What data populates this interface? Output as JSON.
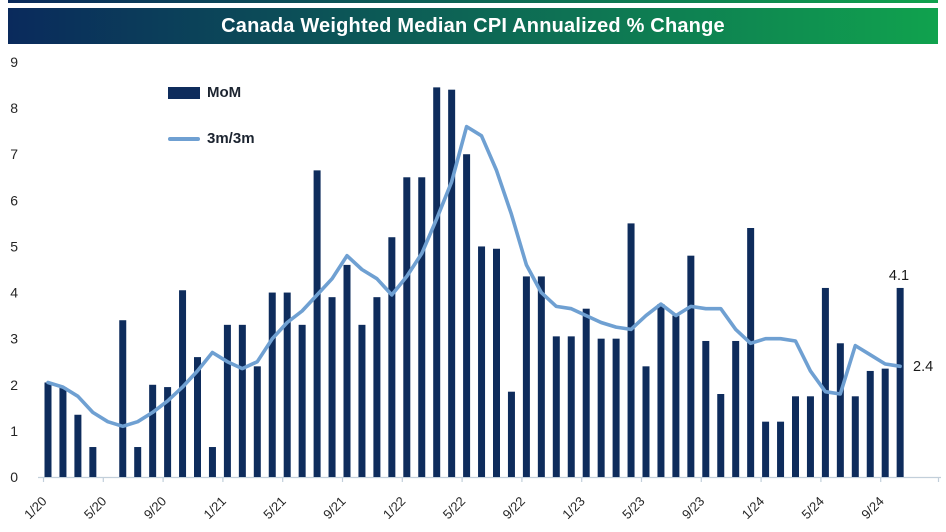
{
  "title": "Canada Weighted Median CPI Annualized % Change",
  "legend": {
    "bar_label": "MoM",
    "line_label": "3m/3m"
  },
  "annotations": {
    "last_bar_label": "4.1",
    "line_end_label": "2.4"
  },
  "colors": {
    "bar": "#0e2c5c",
    "line": "#6fa0d2",
    "title_gradient_start": "#0a2a5c",
    "title_gradient_end": "#10a24e",
    "axis": "#c2cfda",
    "axis_text": "#262626",
    "annotation_text": "#1a1a1a"
  },
  "y_axis": {
    "min": 0,
    "max": 9,
    "ticks": [
      "0",
      "1",
      "2",
      "3",
      "4",
      "5",
      "6",
      "7",
      "8",
      "9"
    ]
  },
  "x_axis": {
    "tick_labels": [
      "1/20",
      "5/20",
      "9/20",
      "1/21",
      "5/21",
      "9/21",
      "1/22",
      "5/22",
      "9/22",
      "1/23",
      "5/23",
      "9/23",
      "1/24",
      "5/24",
      "9/24"
    ]
  },
  "chart_data": {
    "type": "bar+line",
    "title": "Canada Weighted Median CPI Annualized % Change",
    "xlabel": "",
    "ylabel": "",
    "ylim": [
      0,
      9
    ],
    "grid": false,
    "legend_position": "inside-top-left",
    "categories": [
      "1/20",
      "2/20",
      "3/20",
      "4/20",
      "5/20",
      "6/20",
      "7/20",
      "8/20",
      "9/20",
      "10/20",
      "11/20",
      "12/20",
      "1/21",
      "2/21",
      "3/21",
      "4/21",
      "5/21",
      "6/21",
      "7/21",
      "8/21",
      "9/21",
      "10/21",
      "11/21",
      "12/21",
      "1/22",
      "2/22",
      "3/22",
      "4/22",
      "5/22",
      "6/22",
      "7/22",
      "8/22",
      "9/22",
      "10/22",
      "11/22",
      "12/22",
      "1/23",
      "2/23",
      "3/23",
      "4/23",
      "5/23",
      "6/23",
      "7/23",
      "8/23",
      "9/23",
      "10/23",
      "11/23",
      "12/23",
      "1/24",
      "2/24",
      "3/24",
      "4/24",
      "5/24",
      "6/24",
      "7/24",
      "8/24",
      "9/24",
      "10/24"
    ],
    "series": [
      {
        "name": "MoM",
        "type": "bar",
        "values": [
          2.05,
          1.95,
          1.35,
          0.65,
          0,
          3.4,
          0.65,
          2.0,
          1.95,
          4.05,
          2.6,
          0.65,
          3.3,
          3.3,
          2.4,
          4.0,
          4.0,
          3.3,
          6.65,
          3.9,
          4.6,
          3.3,
          3.9,
          5.2,
          6.5,
          6.5,
          8.45,
          8.4,
          7.0,
          5.0,
          4.95,
          1.85,
          4.35,
          4.35,
          3.05,
          3.05,
          3.65,
          3.0,
          3.0,
          5.5,
          2.4,
          3.75,
          3.5,
          4.8,
          2.95,
          1.8,
          2.95,
          5.4,
          1.2,
          1.2,
          1.75,
          1.75,
          4.1,
          2.9,
          1.75,
          2.3,
          2.35,
          4.1
        ]
      },
      {
        "name": "3m/3m",
        "type": "line",
        "values": [
          2.05,
          1.95,
          1.75,
          1.4,
          1.2,
          1.1,
          1.2,
          1.4,
          1.65,
          1.95,
          2.3,
          2.7,
          2.5,
          2.35,
          2.5,
          3.0,
          3.35,
          3.6,
          3.95,
          4.3,
          4.8,
          4.5,
          4.3,
          3.95,
          4.35,
          4.85,
          5.6,
          6.4,
          7.6,
          7.4,
          6.65,
          5.7,
          4.6,
          4.0,
          3.7,
          3.65,
          3.5,
          3.35,
          3.25,
          3.2,
          3.5,
          3.75,
          3.5,
          3.7,
          3.65,
          3.65,
          3.2,
          2.9,
          3.0,
          3.0,
          2.95,
          2.3,
          1.85,
          1.8,
          2.85,
          2.65,
          2.45,
          2.4
        ]
      }
    ]
  }
}
